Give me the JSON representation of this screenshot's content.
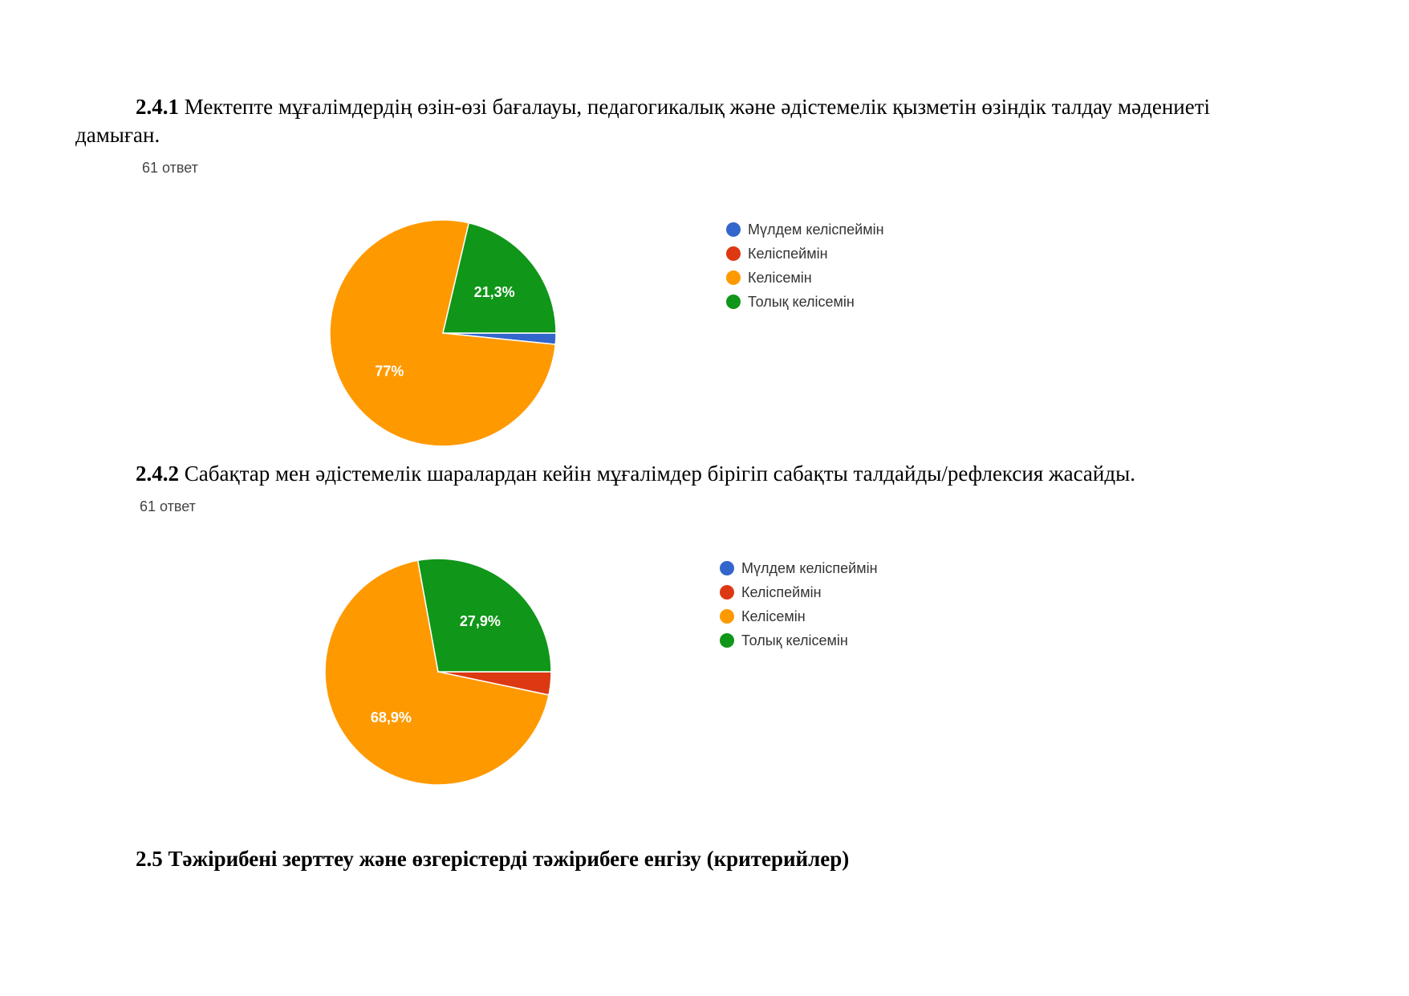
{
  "colors": {
    "blue": "#3366cc",
    "red": "#dc3912",
    "orange": "#ff9900",
    "green": "#109618"
  },
  "questions": [
    {
      "number": "2.4.1",
      "text": " Мектепте мұғалімдердің өзін-өзі бағалауы, педагогикалық және әдістемелік қызметін өзіндік талдау мәдениеті дамыған.",
      "responses": "61 ответ"
    },
    {
      "number": "2.4.2",
      "text": " Сабақтар мен әдістемелік шаралардан кейін мұғалімдер бірігіп сабақты талдайды/рефлексия жасайды.",
      "responses": "61 ответ"
    }
  ],
  "chart_data": [
    {
      "type": "pie",
      "categories": [
        "Мүлдем келіспеймін",
        "Келіспеймін",
        "Келісемін",
        "Толық келісемін"
      ],
      "values": [
        1.6,
        0,
        77,
        21.3
      ],
      "labels": [
        "",
        "",
        "77%",
        "21,3%"
      ],
      "colors": [
        "#3366cc",
        "#dc3912",
        "#ff9900",
        "#109618"
      ],
      "legend": "right"
    },
    {
      "type": "pie",
      "categories": [
        "Мүлдем келіспеймін",
        "Келіспеймін",
        "Келісемін",
        "Толық келісемін"
      ],
      "values": [
        0,
        3.3,
        68.9,
        27.9
      ],
      "labels": [
        "",
        "",
        "68,9%",
        "27,9%"
      ],
      "colors": [
        "#3366cc",
        "#dc3912",
        "#ff9900",
        "#109618"
      ],
      "legend": "right"
    }
  ],
  "section": {
    "heading": "2.5 Тәжірибені зерттеу және өзгерістерді тәжірибеге енгізу (критерийлер)"
  }
}
